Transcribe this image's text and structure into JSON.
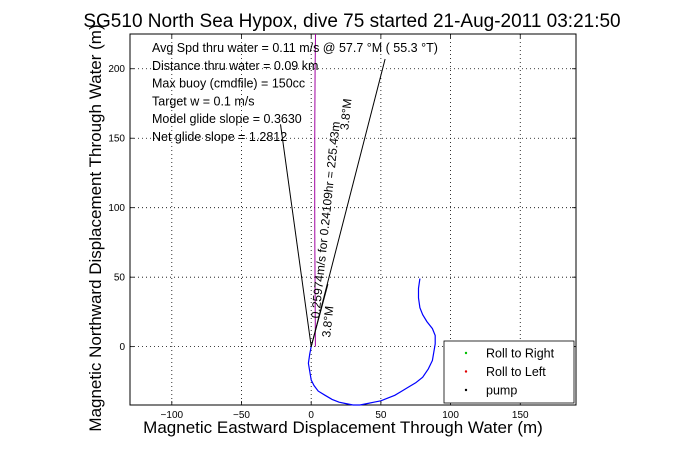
{
  "chart_data": {
    "type": "line",
    "title": "SG510 North Sea Hypox, dive 75 started 21-Aug-2011 03:21:50",
    "xlabel": "Magnetic Eastward Displacement Through Water (m)",
    "ylabel": "Magnetic Northward Displacement Through Water (m)",
    "xlim": [
      -130,
      190
    ],
    "ylim": [
      -42,
      225
    ],
    "x_ticks": [
      -100,
      -50,
      0,
      50,
      100,
      150
    ],
    "y_ticks": [
      0,
      50,
      100,
      150,
      200
    ],
    "x_tick_labels": [
      "−100",
      "−50",
      "0",
      "50",
      "100",
      "150"
    ],
    "y_tick_labels": [
      "0",
      "50",
      "100",
      "150",
      "200"
    ],
    "grid": true,
    "legend_position": "bottom-right",
    "legend": [
      {
        "label": "Roll to Right",
        "color": "#00c000",
        "marker": "dot"
      },
      {
        "label": "Roll to Left",
        "color": "#e00000",
        "marker": "dot"
      },
      {
        "label": "pump",
        "color": "#000000",
        "marker": "dot"
      }
    ],
    "notes": [
      "Avg Spd thru water =  0.11 m/s @ 57.7   °M ( 55.3 °T)",
      "Distance thru water =  0.09 km",
      "Max buoy (cmdfile) = 150cc",
      "Target w = 0.1 m/s",
      "Model glide slope = 0.3630",
      "Net glide slope = 1.2812"
    ],
    "annotations": [
      {
        "text": "0.25974m/s for 0.24109hr = 225.43m",
        "x": 0,
        "y": 0
      },
      {
        "text": "3.8°M",
        "x": 5,
        "y": 15
      },
      {
        "text": "3.8°M",
        "x": 18,
        "y": 160
      }
    ],
    "series": [
      {
        "color": "#0000ff",
        "x": [
          0,
          -1,
          -2,
          -1,
          0,
          2,
          5,
          10,
          15,
          20,
          25,
          30,
          35,
          40,
          45,
          50,
          55,
          60,
          65,
          70,
          75,
          80,
          84,
          87,
          88,
          89,
          89,
          87,
          83,
          80,
          78,
          77,
          77,
          78
        ],
        "y": [
          0,
          -5,
          -12,
          -18,
          -24,
          -28,
          -32,
          -35,
          -38,
          -40,
          -41,
          -42,
          -42,
          -41,
          -40,
          -39,
          -37,
          -35,
          -32,
          -29,
          -26,
          -22,
          -16,
          -10,
          -4,
          2,
          8,
          13,
          18,
          23,
          28,
          35,
          42,
          49
        ]
      },
      {
        "color": "#a000a0",
        "x": [
          3,
          2.8,
          2.6,
          2.5,
          2.6,
          2.8,
          3.1
        ],
        "y": [
          0,
          40,
          80,
          120,
          160,
          200,
          225
        ]
      },
      {
        "color": "#000000",
        "x": [
          0,
          53
        ],
        "y": [
          0,
          207
        ]
      },
      {
        "color": "#000000",
        "x": [
          0,
          -22
        ],
        "y": [
          0,
          160
        ]
      },
      {
        "color": "#000000",
        "x": [
          0,
          12
        ],
        "y": [
          0,
          45
        ]
      }
    ]
  }
}
